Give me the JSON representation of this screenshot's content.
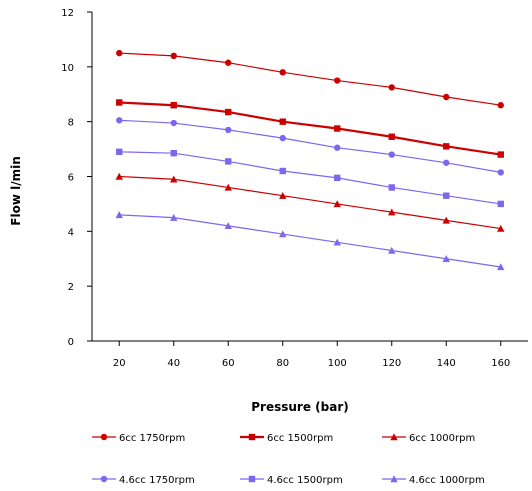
{
  "chart_data": {
    "type": "line",
    "title": "",
    "xlabel": "Pressure (bar)",
    "ylabel": "Flow l/min",
    "x": [
      20,
      40,
      60,
      80,
      100,
      120,
      140,
      160
    ],
    "xlim": [
      10,
      170
    ],
    "ylim": [
      0,
      12
    ],
    "yticks": [
      0,
      2,
      4,
      6,
      8,
      10,
      12
    ],
    "xticks": [
      20,
      40,
      60,
      80,
      100,
      120,
      140,
      160
    ],
    "grid": false,
    "legend_position": "bottom",
    "series": [
      {
        "name": "6cc 1750rpm",
        "color": "#cc0000",
        "marker": "circle",
        "values": [
          10.5,
          10.4,
          10.15,
          9.8,
          9.5,
          9.25,
          8.9,
          8.6
        ]
      },
      {
        "name": "6cc 1500rpm",
        "color": "#cc0000",
        "marker": "square",
        "values": [
          8.7,
          8.6,
          8.35,
          8.0,
          7.75,
          7.45,
          7.1,
          6.8
        ]
      },
      {
        "name": "6cc 1000rpm",
        "color": "#cc0000",
        "marker": "triangle",
        "values": [
          6.0,
          5.9,
          5.6,
          5.3,
          5.0,
          4.7,
          4.4,
          4.1
        ]
      },
      {
        "name": "4.6cc 1750rpm",
        "color": "#7b68ee",
        "marker": "circle",
        "values": [
          8.05,
          7.95,
          7.7,
          7.4,
          7.05,
          6.8,
          6.5,
          6.15
        ]
      },
      {
        "name": "4.6cc 1500rpm",
        "color": "#7b68ee",
        "marker": "square",
        "values": [
          6.9,
          6.85,
          6.55,
          6.2,
          5.95,
          5.6,
          5.3,
          5.0
        ]
      },
      {
        "name": "4.6cc 1000rpm",
        "color": "#7b68ee",
        "marker": "triangle",
        "values": [
          4.6,
          4.5,
          4.2,
          3.9,
          3.6,
          3.3,
          3.0,
          2.7
        ]
      }
    ]
  }
}
